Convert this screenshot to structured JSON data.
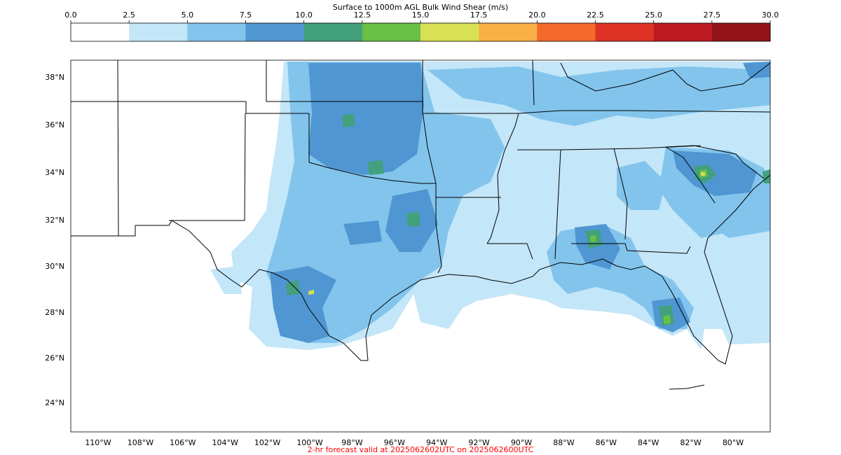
{
  "title": "Surface to 1000m AGL Bulk Wind Shear (m/s)",
  "footer": "2-hr forecast valid at 2025062602UTC on 2025062600UTC",
  "footer_color": "#ff0000",
  "colorbar": {
    "ticks": [
      "0.0",
      "2.5",
      "5.0",
      "7.5",
      "10.0",
      "12.5",
      "15.0",
      "17.5",
      "20.0",
      "22.5",
      "25.0",
      "27.5",
      "30.0"
    ],
    "colors": [
      "#ffffff",
      "#c3e6f8",
      "#82c4ec",
      "#5096d2",
      "#42a17c",
      "#6abf46",
      "#d8e054",
      "#f8b046",
      "#f36a2a",
      "#de3226",
      "#be1a22",
      "#921418"
    ]
  },
  "map": {
    "lat_labels": [
      "38°N",
      "36°N",
      "34°N",
      "32°N",
      "30°N",
      "28°N",
      "26°N",
      "24°N"
    ],
    "lon_labels": [
      "110°W",
      "108°W",
      "106°W",
      "104°W",
      "102°W",
      "100°W",
      "98°W",
      "96°W",
      "94°W",
      "92°W",
      "90°W",
      "88°W",
      "86°W",
      "84°W",
      "82°W",
      "80°W"
    ],
    "land_color": "#ffffff",
    "border_color": "#000000"
  }
}
